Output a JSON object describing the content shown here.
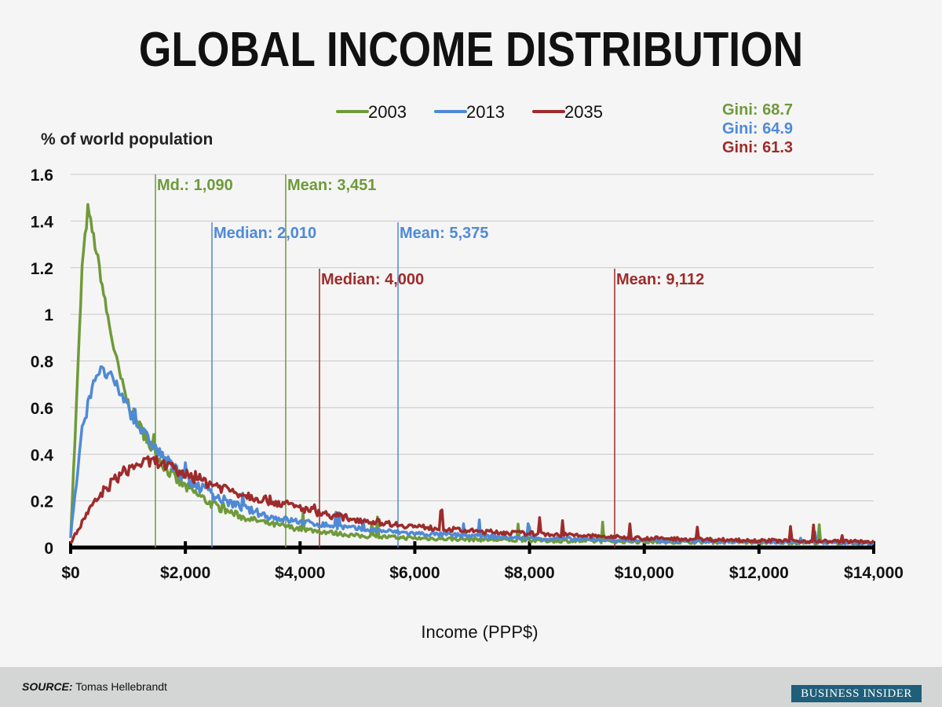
{
  "chart_data": {
    "type": "line",
    "title": "GLOBAL INCOME DISTRIBUTION",
    "ylabel": "% of world population",
    "xlabel": "Income (PPP$)",
    "ylim": [
      0,
      1.6
    ],
    "xlim": [
      0,
      14000
    ],
    "yticks": [
      "0",
      "0.2",
      "0.4",
      "0.6",
      "0.8",
      "1",
      "1.2",
      "1.4",
      "1.6"
    ],
    "xticks": [
      "$0",
      "$2,000",
      "$4,000",
      "$6,000",
      "$8,000",
      "$10,000",
      "$12,000",
      "$14,000"
    ],
    "grid": true,
    "legend_position": "top-center",
    "series": [
      {
        "name": "2003",
        "color": "#6f9a3a",
        "gini": "Gini: 68.7",
        "x": [
          0,
          100,
          200,
          300,
          400,
          500,
          600,
          700,
          800,
          900,
          1000,
          1200,
          1400,
          1600,
          1800,
          2000,
          2500,
          3000,
          3500,
          4000,
          5000,
          6000,
          8000,
          10000,
          14000
        ],
        "y": [
          0.05,
          0.6,
          1.2,
          1.45,
          1.33,
          1.2,
          1.05,
          0.92,
          0.8,
          0.7,
          0.62,
          0.52,
          0.43,
          0.36,
          0.3,
          0.26,
          0.18,
          0.13,
          0.1,
          0.08,
          0.05,
          0.04,
          0.03,
          0.025,
          0.02
        ]
      },
      {
        "name": "2013",
        "color": "#4f8ad6",
        "gini": "Gini: 64.9",
        "x": [
          0,
          200,
          400,
          500,
          700,
          900,
          1100,
          1300,
          1500,
          1800,
          2000,
          2500,
          3000,
          3500,
          4000,
          5000,
          6000,
          8000,
          10000,
          14000
        ],
        "y": [
          0.05,
          0.5,
          0.72,
          0.76,
          0.73,
          0.65,
          0.55,
          0.48,
          0.42,
          0.34,
          0.3,
          0.22,
          0.17,
          0.13,
          0.11,
          0.08,
          0.06,
          0.04,
          0.03,
          0.02
        ]
      },
      {
        "name": "2035",
        "color": "#9e2b2b",
        "gini": "Gini: 61.3",
        "x": [
          0,
          300,
          600,
          900,
          1200,
          1500,
          2000,
          2500,
          3000,
          3500,
          4000,
          4500,
          5000,
          6000,
          7000,
          8000,
          10000,
          12000,
          14000
        ],
        "y": [
          0.02,
          0.15,
          0.25,
          0.32,
          0.36,
          0.37,
          0.31,
          0.27,
          0.23,
          0.2,
          0.17,
          0.14,
          0.12,
          0.09,
          0.07,
          0.06,
          0.04,
          0.03,
          0.025
        ]
      }
    ],
    "annotations": [
      {
        "text": "Md.: 1,090",
        "color": "#6f9a3a"
      },
      {
        "text": "Mean: 3,451",
        "color": "#6f9a3a"
      },
      {
        "text": "Median: 2,010",
        "color": "#4f8ad6"
      },
      {
        "text": "Mean: 5,375",
        "color": "#4f8ad6"
      },
      {
        "text": "Median: 4,000",
        "color": "#9e2b2b"
      },
      {
        "text": "Mean: 9,112",
        "color": "#9e2b2b"
      }
    ]
  },
  "footer": {
    "source_label": "SOURCE:",
    "source": "Tomas Hellebrandt",
    "brand": "BUSINESS INSIDER"
  }
}
